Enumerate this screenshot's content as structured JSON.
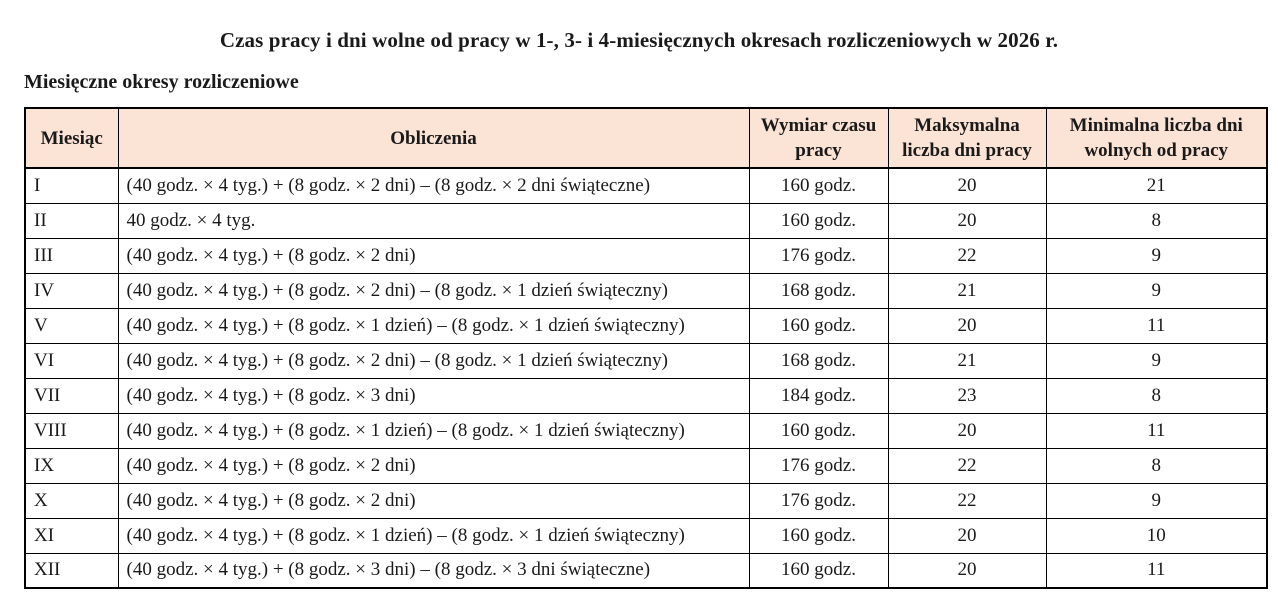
{
  "page": {
    "title": "Czas pracy i dni wolne od pracy w 1-, 3- i 4-miesięcznych okresach rozliczeniowych w 2026 r.",
    "section_heading": "Miesięczne okresy rozliczeniowe"
  },
  "table": {
    "header_bg": "#fbe3d6",
    "columns": [
      "Miesiąc",
      "Obliczenia",
      "Wymiar czasu pracy",
      "Maksymalna liczba dni pracy",
      "Minimalna liczba dni wolnych od pracy"
    ],
    "rows": [
      {
        "month": "I",
        "calc": "(40 godz. × 4 tyg.) + (8 godz. × 2 dni) – (8 godz. × 2 dni świąteczne)",
        "hours": "160 godz.",
        "max_work_days": "20",
        "min_free_days": "21"
      },
      {
        "month": "II",
        "calc": "40 godz. × 4 tyg.",
        "hours": "160 godz.",
        "max_work_days": "20",
        "min_free_days": "8"
      },
      {
        "month": "III",
        "calc": "(40 godz. × 4 tyg.) + (8 godz. × 2 dni)",
        "hours": "176 godz.",
        "max_work_days": "22",
        "min_free_days": "9"
      },
      {
        "month": "IV",
        "calc": "(40 godz. × 4 tyg.) + (8 godz. × 2 dni) – (8 godz. × 1 dzień świąteczny)",
        "hours": "168 godz.",
        "max_work_days": "21",
        "min_free_days": "9"
      },
      {
        "month": "V",
        "calc": "(40 godz. × 4 tyg.) + (8 godz. × 1 dzień) – (8 godz. × 1 dzień świąteczny)",
        "hours": "160 godz.",
        "max_work_days": "20",
        "min_free_days": "11"
      },
      {
        "month": "VI",
        "calc": "(40 godz. × 4 tyg.) + (8 godz. × 2 dni) – (8 godz. × 1 dzień świąteczny)",
        "hours": "168 godz.",
        "max_work_days": "21",
        "min_free_days": "9"
      },
      {
        "month": "VII",
        "calc": "(40 godz. × 4 tyg.) + (8 godz. × 3 dni)",
        "hours": "184 godz.",
        "max_work_days": "23",
        "min_free_days": "8"
      },
      {
        "month": "VIII",
        "calc": "(40 godz. × 4 tyg.) + (8 godz. × 1 dzień) – (8 godz. × 1 dzień świąteczny)",
        "hours": "160 godz.",
        "max_work_days": "20",
        "min_free_days": "11"
      },
      {
        "month": "IX",
        "calc": "(40 godz. × 4 tyg.) + (8 godz. × 2 dni)",
        "hours": "176 godz.",
        "max_work_days": "22",
        "min_free_days": "8"
      },
      {
        "month": "X",
        "calc": "(40 godz. × 4 tyg.) + (8 godz. × 2 dni)",
        "hours": "176 godz.",
        "max_work_days": "22",
        "min_free_days": "9"
      },
      {
        "month": "XI",
        "calc": "(40 godz. × 4 tyg.) + (8 godz. × 1 dzień) – (8 godz. × 1 dzień świąteczny)",
        "hours": "160 godz.",
        "max_work_days": "20",
        "min_free_days": "10"
      },
      {
        "month": "XII",
        "calc": "(40 godz. × 4 tyg.) + (8 godz. × 3 dni) – (8 godz. × 3 dni świąteczne)",
        "hours": "160 godz.",
        "max_work_days": "20",
        "min_free_days": "11"
      }
    ]
  }
}
